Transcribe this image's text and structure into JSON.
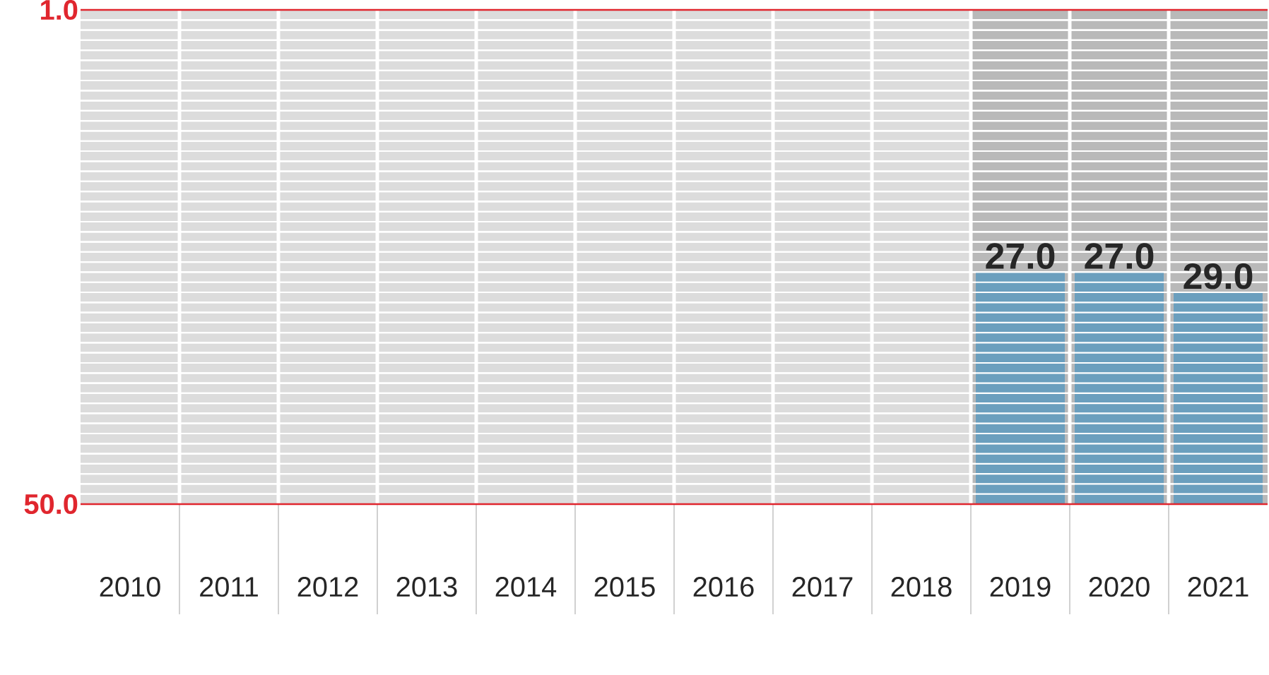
{
  "chart_data": {
    "type": "bar",
    "categories": [
      "2010",
      "2011",
      "2012",
      "2013",
      "2014",
      "2015",
      "2016",
      "2017",
      "2018",
      "2019",
      "2020",
      "2021"
    ],
    "values": [
      null,
      null,
      null,
      null,
      null,
      null,
      null,
      null,
      null,
      -23,
      -23,
      -21
    ],
    "base": [
      null,
      null,
      null,
      null,
      null,
      null,
      null,
      null,
      null,
      50,
      50,
      50
    ],
    "value_labels": [
      null,
      null,
      null,
      null,
      null,
      null,
      null,
      null,
      null,
      "27.0",
      "27.0",
      "29.0"
    ],
    "color": "#6b9fbe",
    "ylim": [
      50,
      1
    ],
    "yticks": [
      {
        "value": 1,
        "label": "1.0"
      },
      {
        "value": 50,
        "label": "50.0"
      }
    ],
    "grid": "y",
    "bands": [
      {
        "axis": "x",
        "from": "2010",
        "to": "2018",
        "color": "#dcdcdc"
      },
      {
        "axis": "x",
        "from": "2019",
        "to": "2021",
        "color": "#b9b9b9"
      }
    ]
  }
}
